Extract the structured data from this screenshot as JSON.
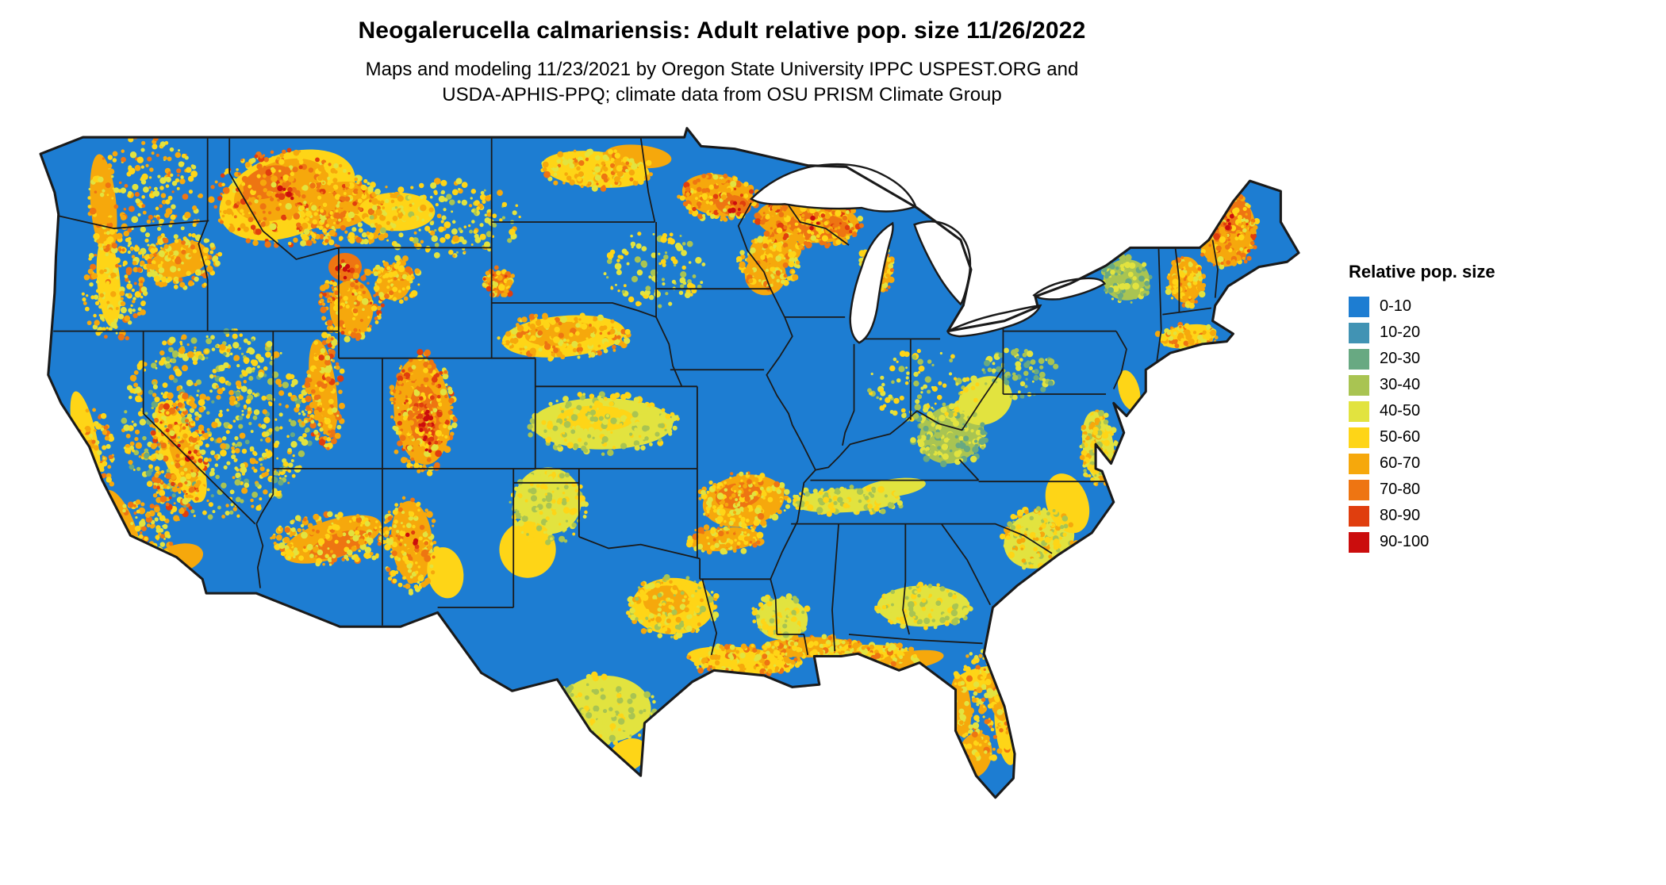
{
  "header": {
    "title": "Neogalerucella calmariensis: Adult relative pop. size 11/26/2022",
    "subtitle_line1": "Maps and modeling 11/23/2021 by Oregon State University IPPC USPEST.ORG and",
    "subtitle_line2": "USDA-APHIS-PPQ; climate data from OSU PRISM Climate Group"
  },
  "legend": {
    "title": "Relative pop. size",
    "bins": [
      {
        "label": "0-10",
        "color": "#1d7dd2"
      },
      {
        "label": "10-20",
        "color": "#4193b4"
      },
      {
        "label": "20-30",
        "color": "#68a982"
      },
      {
        "label": "30-40",
        "color": "#a9c452"
      },
      {
        "label": "40-50",
        "color": "#e2e33f"
      },
      {
        "label": "50-60",
        "color": "#fed517"
      },
      {
        "label": "60-70",
        "color": "#f6a80c"
      },
      {
        "label": "70-80",
        "color": "#ee7512"
      },
      {
        "label": "80-90",
        "color": "#e03e0e"
      },
      {
        "label": "90-100",
        "color": "#cb0d0d"
      }
    ]
  },
  "map": {
    "region": "Continental United States",
    "land_base_color": "#1d7dd2",
    "boundary_color": "#1a1a1a",
    "water_background": "#ffffff"
  }
}
